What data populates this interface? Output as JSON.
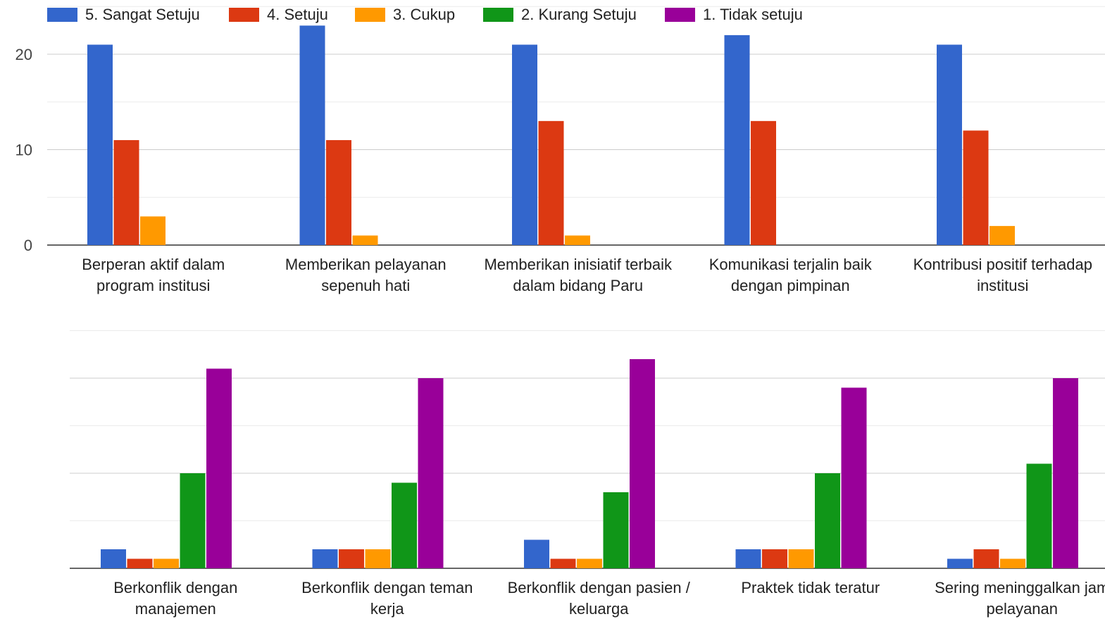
{
  "legend": [
    {
      "label": "5. Sangat Setuju",
      "color": "#3366cc"
    },
    {
      "label": "4. Setuju",
      "color": "#dc3912"
    },
    {
      "label": "3. Cukup",
      "color": "#ff9900"
    },
    {
      "label": "2. Kurang Setuju",
      "color": "#109618"
    },
    {
      "label": "1. Tidak setuju",
      "color": "#990099"
    }
  ],
  "chart_data": [
    {
      "type": "bar",
      "title": "",
      "categories": [
        [
          "Berperan aktif dalam",
          "program institusi"
        ],
        [
          "Memberikan pelayanan",
          "sepenuh hati"
        ],
        [
          "Memberikan inisiatif terbaik",
          "dalam bidang Paru"
        ],
        [
          "Komunikasi terjalin baik",
          "dengan pimpinan"
        ],
        [
          "Kontribusi positif terhadap",
          "institusi"
        ]
      ],
      "series": [
        {
          "name": "5. Sangat Setuju",
          "color": "#3366cc",
          "values": [
            21,
            23,
            21,
            22,
            21
          ]
        },
        {
          "name": "4. Setuju",
          "color": "#dc3912",
          "values": [
            11,
            11,
            13,
            13,
            12
          ]
        },
        {
          "name": "3. Cukup",
          "color": "#ff9900",
          "values": [
            3,
            1,
            1,
            0,
            2
          ]
        },
        {
          "name": "2. Kurang Setuju",
          "color": "#109618",
          "values": [
            0,
            0,
            0,
            0,
            0
          ]
        },
        {
          "name": "1. Tidak setuju",
          "color": "#990099",
          "values": [
            0,
            0,
            0,
            0,
            0
          ]
        }
      ],
      "yticks": [
        "0",
        "10",
        "20"
      ],
      "ylim": [
        0,
        25
      ],
      "grid": true,
      "legend_position": "top"
    },
    {
      "type": "bar",
      "title": "",
      "categories": [
        [
          "Berkonflik dengan",
          "manajemen"
        ],
        [
          "Berkonflik dengan teman",
          "kerja"
        ],
        [
          "Berkonflik dengan pasien /",
          "keluarga"
        ],
        [
          "Praktek tidak teratur"
        ],
        [
          "Sering meninggalkan jam",
          "pelayanan"
        ]
      ],
      "series": [
        {
          "name": "5. Sangat Setuju",
          "color": "#3366cc",
          "values": [
            2,
            2,
            3,
            2,
            1
          ]
        },
        {
          "name": "4. Setuju",
          "color": "#dc3912",
          "values": [
            1,
            2,
            1,
            2,
            2
          ]
        },
        {
          "name": "3. Cukup",
          "color": "#ff9900",
          "values": [
            1,
            2,
            1,
            2,
            1
          ]
        },
        {
          "name": "2. Kurang Setuju",
          "color": "#109618",
          "values": [
            10,
            9,
            8,
            10,
            11
          ]
        },
        {
          "name": "1. Tidak setuju",
          "color": "#990099",
          "values": [
            21,
            20,
            22,
            19,
            20
          ]
        }
      ],
      "yticks": [],
      "ylim": [
        0,
        25
      ],
      "grid": true
    }
  ]
}
